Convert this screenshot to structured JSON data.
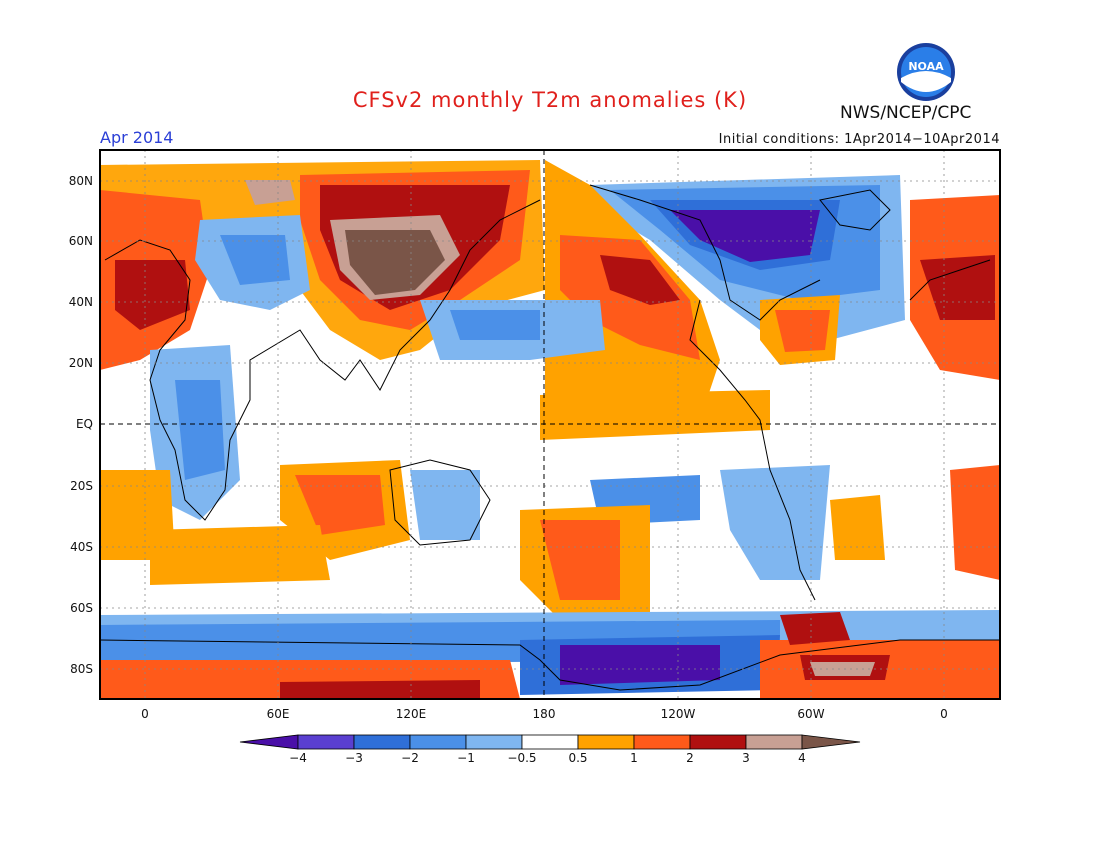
{
  "header": {
    "title": "CFSv2 monthly T2m anomalies (K)",
    "month": "Apr 2014",
    "initial_conditions": "Initial conditions: 1Apr2014−10Apr2014",
    "agency": "NWS/NCEP/CPC",
    "logo_text": "NOAA"
  },
  "map": {
    "lat_labels": [
      "80N",
      "60N",
      "40N",
      "20N",
      "EQ",
      "20S",
      "40S",
      "60S",
      "80S"
    ],
    "lon_labels": [
      "0",
      "60E",
      "120E",
      "180",
      "120W",
      "60W",
      "0"
    ],
    "projection": "cylindrical equidistant, centered 180"
  },
  "colorbar": {
    "labels": [
      "−4",
      "−3",
      "−2",
      "−1",
      "−0.5",
      "0.5",
      "1",
      "2",
      "3",
      "4"
    ],
    "colors": [
      "#4a0fa8",
      "#5a3fd0",
      "#2f6fd8",
      "#4b90e8",
      "#7fb6f0",
      "#ffffff",
      "#ffa200",
      "#ff5a1a",
      "#b01010",
      "#c8a094",
      "#7a5548"
    ],
    "units": "K"
  }
}
